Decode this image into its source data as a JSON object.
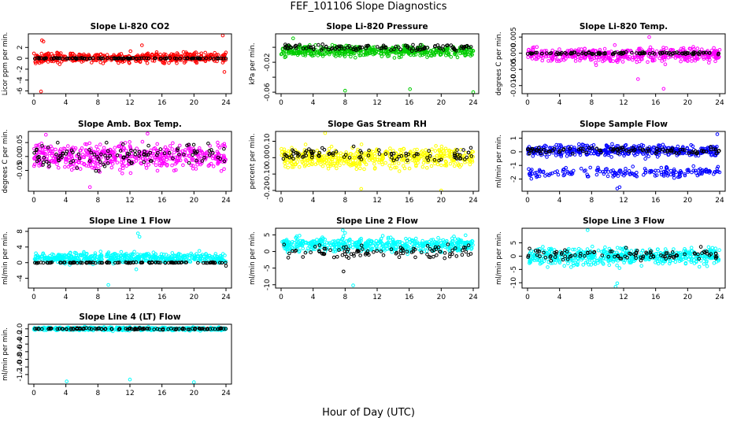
{
  "figure": {
    "title": "FEF_101106  Slope Diagnostics",
    "xlabel": "Hour of Day (UTC)"
  },
  "chart_data": [
    {
      "type": "scatter",
      "title": "Slope Li-820 CO2",
      "ylabel": "Licor ppm per min.",
      "xlim": [
        0,
        24
      ],
      "x_ticks": [
        "0",
        "4",
        "8",
        "12",
        "16",
        "20",
        "24"
      ],
      "ylim": [
        -6.5,
        4.5
      ],
      "y_ticks": [
        -6,
        -4,
        -2,
        0,
        2
      ],
      "y_tick_labels": [
        "-6",
        "-4",
        "-2",
        "0",
        "2"
      ],
      "series": [
        {
          "color": "#ff0000",
          "center": 0.1,
          "spread": 0.9,
          "extremes": [
            [
              1.0,
              3.3
            ],
            [
              1.2,
              3.1
            ],
            [
              0.9,
              -6.1
            ],
            [
              23.6,
              4.2
            ],
            [
              23.8,
              -2.5
            ],
            [
              13.5,
              2.4
            ]
          ],
          "n": 480
        },
        {
          "color": "#000000",
          "center": 0.0,
          "spread": 0.1,
          "extremes": [],
          "n": 110
        }
      ]
    },
    {
      "type": "scatter",
      "title": "Slope Li-820 Pressure",
      "ylabel": "kPa per min.",
      "xlim": [
        0,
        24
      ],
      "x_ticks": [
        "0",
        "4",
        "8",
        "12",
        "16",
        "20",
        "24"
      ],
      "ylim": [
        -0.062,
        0.018
      ],
      "y_ticks": [
        -0.06,
        -0.04,
        -0.02,
        0
      ],
      "y_tick_labels": [
        "-0.06",
        "",
        "-0.02",
        ""
      ],
      "series": [
        {
          "color": "#00cc00",
          "center": -0.005,
          "spread": 0.007,
          "extremes": [
            [
              8.0,
              -0.058
            ],
            [
              16.1,
              -0.056
            ],
            [
              24.0,
              -0.06
            ],
            [
              1.5,
              0.012
            ]
          ],
          "n": 480
        },
        {
          "color": "#000000",
          "center": 0.0,
          "spread": 0.004,
          "extremes": [],
          "n": 110
        }
      ]
    },
    {
      "type": "scatter",
      "title": "Slope Li-820 Temp.",
      "ylabel": "degrees C per min.",
      "xlim": [
        0,
        24
      ],
      "x_ticks": [
        "0",
        "4",
        "8",
        "12",
        "16",
        "20",
        "24"
      ],
      "ylim": [
        -0.0125,
        0.006
      ],
      "y_ticks": [
        -0.01,
        -0.005,
        0,
        0.005
      ],
      "y_tick_labels": [
        "-0.010",
        "-0.005",
        "0.000",
        "0.005"
      ],
      "series": [
        {
          "color": "#ff00ff",
          "center": -0.0005,
          "spread": 0.0022,
          "extremes": [
            [
              15.2,
              0.005
            ],
            [
              17.0,
              -0.011
            ],
            [
              13.8,
              -0.008
            ]
          ],
          "n": 460
        },
        {
          "color": "#000000",
          "center": 0.0,
          "spread": 0.0004,
          "extremes": [],
          "n": 110
        }
      ]
    },
    {
      "type": "scatter",
      "title": "Slope Amb. Box Temp.",
      "ylabel": "degrees C per min.",
      "xlim": [
        0,
        24
      ],
      "x_ticks": [
        "0",
        "4",
        "8",
        "12",
        "16",
        "20",
        "24"
      ],
      "ylim": [
        -0.125,
        0.09
      ],
      "y_ticks": [
        -0.05,
        0,
        0.05
      ],
      "y_tick_labels": [
        "-0.05",
        "0.00",
        "0.05"
      ],
      "series": [
        {
          "color": "#ff00ff",
          "center": 0.0,
          "spread": 0.045,
          "extremes": [
            [
              1.5,
              0.078
            ],
            [
              14.2,
              0.082
            ],
            [
              7.0,
              -0.11
            ]
          ],
          "n": 520
        },
        {
          "color": "#000000",
          "center": 0.0,
          "spread": 0.045,
          "extremes": [],
          "n": 110
        }
      ]
    },
    {
      "type": "scatter",
      "title": "Slope Gas Stream RH",
      "ylabel": "percent per min.",
      "xlim": [
        0,
        24
      ],
      "x_ticks": [
        "0",
        "4",
        "8",
        "12",
        "16",
        "20",
        "24"
      ],
      "ylim": [
        -0.205,
        0.16
      ],
      "y_ticks": [
        -0.2,
        -0.1,
        0,
        0.1
      ],
      "y_tick_labels": [
        "-0.20",
        "-0.10",
        "0.00",
        "0.10"
      ],
      "series": [
        {
          "color": "#ffff00",
          "center": 0.0,
          "spread": 0.06,
          "extremes": [
            [
              10.0,
              -0.19
            ],
            [
              20.0,
              -0.2
            ],
            [
              5.5,
              0.15
            ]
          ],
          "n": 520
        },
        {
          "color": "#000000",
          "center": 0.02,
          "spread": 0.045,
          "extremes": [],
          "n": 90
        }
      ]
    },
    {
      "type": "scatter",
      "title": "Slope Sample Flow",
      "ylabel": "ml/min per min.",
      "xlim": [
        0,
        24
      ],
      "x_ticks": [
        "0",
        "4",
        "8",
        "12",
        "16",
        "20",
        "24"
      ],
      "ylim": [
        -2.9,
        1.5
      ],
      "y_ticks": [
        -2,
        -1,
        0,
        1
      ],
      "y_tick_labels": [
        "-2",
        "-1",
        "0",
        "1"
      ],
      "series": [
        {
          "color": "#0000ff",
          "center": 0.1,
          "spread": 0.4,
          "extremes": [
            [
              11.2,
              -2.7
            ],
            [
              11.5,
              -2.6
            ],
            [
              23.7,
              1.3
            ]
          ],
          "n": 420
        },
        {
          "color": "#0000ff",
          "center": -1.5,
          "spread": 0.35,
          "extremes": [],
          "n": 180
        },
        {
          "color": "#000000",
          "center": 0.1,
          "spread": 0.25,
          "extremes": [],
          "n": 100
        }
      ]
    },
    {
      "type": "scatter",
      "title": "Slope Line 1 Flow",
      "ylabel": "ml/min per min.",
      "xlim": [
        0,
        24
      ],
      "x_ticks": [
        "0",
        "4",
        "8",
        "12",
        "16",
        "20",
        "24"
      ],
      "ylim": [
        -6.5,
        8.8
      ],
      "y_ticks": [
        -4,
        0,
        4,
        8
      ],
      "y_tick_labels": [
        "-4",
        "0",
        "4",
        "8"
      ],
      "series": [
        {
          "color": "#00ffff",
          "center": 1.2,
          "spread": 1.3,
          "extremes": [
            [
              9.3,
              -5.7
            ],
            [
              13.0,
              7.5
            ],
            [
              13.2,
              6.6
            ],
            [
              12.8,
              -1.7
            ]
          ],
          "n": 500
        },
        {
          "color": "#000000",
          "center": 0.0,
          "spread": 0.1,
          "extremes": [
            [
              24.0,
              -0.8
            ]
          ],
          "n": 110
        }
      ]
    },
    {
      "type": "scatter",
      "title": "Slope Line 2 Flow",
      "ylabel": "ml/min per min.",
      "xlim": [
        0,
        24
      ],
      "x_ticks": [
        "0",
        "4",
        "8",
        "12",
        "16",
        "20",
        "24"
      ],
      "ylim": [
        -11,
        7
      ],
      "y_ticks": [
        -10,
        -5,
        0,
        5
      ],
      "y_tick_labels": [
        "-10",
        "-5",
        "0",
        "5"
      ],
      "series": [
        {
          "color": "#00ffff",
          "center": 2.0,
          "spread": 2.0,
          "extremes": [
            [
              7.7,
              6.4
            ],
            [
              8.0,
              5.6
            ],
            [
              9.0,
              -10.2
            ]
          ],
          "n": 520
        },
        {
          "color": "#000000",
          "center": 0.0,
          "spread": 2.0,
          "extremes": [
            [
              7.8,
              -6.0
            ]
          ],
          "n": 100
        }
      ]
    },
    {
      "type": "scatter",
      "title": "Slope Line 3 Flow",
      "ylabel": "ml/min per min.",
      "xlim": [
        0,
        24
      ],
      "x_ticks": [
        "0",
        "4",
        "8",
        "12",
        "16",
        "20",
        "24"
      ],
      "ylim": [
        -12,
        10.5
      ],
      "y_ticks": [
        -10,
        -5,
        0,
        5
      ],
      "y_tick_labels": [
        "-10",
        "-5",
        "0",
        "5"
      ],
      "series": [
        {
          "color": "#00ffff",
          "center": 0.0,
          "spread": 3.2,
          "extremes": [
            [
              7.5,
              9.8
            ],
            [
              11.0,
              -11.5
            ],
            [
              11.2,
              -10.2
            ]
          ],
          "n": 540
        },
        {
          "color": "#000000",
          "center": 0.5,
          "spread": 2.0,
          "extremes": [],
          "n": 100
        }
      ]
    },
    {
      "type": "scatter",
      "title": "Slope Line 4 (LT) Flow",
      "ylabel": "ml/min per min.",
      "xlim": [
        0,
        24
      ],
      "x_ticks": [
        "0",
        "4",
        "8",
        "12",
        "16",
        "20",
        "24"
      ],
      "ylim": [
        -1.45,
        0.12
      ],
      "y_ticks": [
        -1.2,
        -1.0,
        -0.8,
        -0.6,
        -0.4,
        -0.2,
        0
      ],
      "y_tick_labels": [
        "-1.2",
        "-1.0",
        "-0.8",
        "-0.6",
        "-0.4",
        "-0.2",
        "0.0"
      ],
      "series": [
        {
          "color": "#00ffff",
          "center": 0.0,
          "spread": 0.04,
          "extremes": [
            [
              4.1,
              -1.38
            ],
            [
              12.0,
              -1.33
            ],
            [
              20.0,
              -1.4
            ]
          ],
          "n": 520
        },
        {
          "color": "#000000",
          "center": 0.0,
          "spread": 0.02,
          "extremes": [],
          "n": 110
        }
      ]
    }
  ]
}
